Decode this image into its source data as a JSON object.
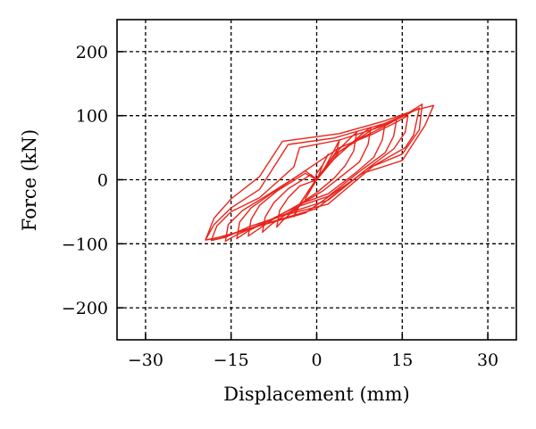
{
  "chart_data": {
    "type": "line",
    "title": "",
    "xlabel": "Displacement (mm)",
    "ylabel": "Force (kN)",
    "xlim": [
      -35,
      35
    ],
    "ylim": [
      -250,
      250
    ],
    "x_ticks": [
      -30,
      -15,
      0,
      15,
      30
    ],
    "y_ticks": [
      -200,
      -100,
      0,
      100,
      200
    ],
    "x_tick_labels": [
      "−30",
      "−15",
      "0",
      "15",
      "30"
    ],
    "y_tick_labels": [
      "−200",
      "−100",
      "0",
      "100",
      "200"
    ],
    "grid": true,
    "grid_style": "dashed",
    "legend": "none",
    "line_color": "#e8241c",
    "series": [
      {
        "x": [
          0,
          0.5,
          1,
          2,
          1.2,
          0,
          -0.5,
          -1,
          -2,
          -1,
          0
        ],
        "y": [
          0,
          10,
          22,
          40,
          25,
          10,
          -5,
          -15,
          -30,
          -15,
          0
        ]
      },
      {
        "x": [
          0,
          1.5,
          3,
          4,
          3.5,
          2,
          0.5,
          -1.5,
          -3,
          -4,
          -3.5,
          -2,
          -0.5,
          0
        ],
        "y": [
          0,
          20,
          45,
          62,
          45,
          25,
          8,
          -18,
          -40,
          -58,
          -45,
          -25,
          -8,
          0
        ]
      },
      {
        "x": [
          0,
          2,
          4,
          6,
          7,
          6.5,
          5,
          3,
          0,
          -2,
          -4,
          -6,
          -7,
          -6.5,
          -5,
          -3,
          0
        ],
        "y": [
          0,
          25,
          48,
          66,
          74,
          45,
          22,
          2,
          -20,
          -32,
          -48,
          -64,
          -74,
          -48,
          -28,
          -10,
          0
        ]
      },
      {
        "x": [
          0,
          3,
          6,
          8,
          9.5,
          9,
          7.5,
          5,
          1,
          -2,
          -5,
          -8,
          -9.5,
          -9,
          -7.5,
          -5,
          -1,
          0
        ],
        "y": [
          0,
          32,
          56,
          72,
          82,
          55,
          28,
          10,
          -18,
          -34,
          -52,
          -70,
          -82,
          -58,
          -36,
          -14,
          8,
          0
        ]
      },
      {
        "x": [
          0,
          3,
          7,
          10,
          12,
          11.5,
          10,
          7,
          2,
          -3,
          -7,
          -10,
          -12,
          -11.5,
          -10,
          -7,
          -2,
          0
        ],
        "y": [
          0,
          38,
          62,
          80,
          88,
          62,
          35,
          12,
          -22,
          -38,
          -58,
          -76,
          -88,
          -62,
          -40,
          -18,
          10,
          0
        ]
      },
      {
        "x": [
          0,
          4,
          8,
          12,
          14,
          13.5,
          12,
          8,
          2,
          -4,
          -8,
          -12,
          -14,
          -13.5,
          -11.5,
          -8,
          -2,
          0
        ],
        "y": [
          0,
          44,
          66,
          84,
          94,
          68,
          42,
          16,
          -26,
          -44,
          -62,
          -80,
          -92,
          -66,
          -44,
          -22,
          14,
          0
        ]
      },
      {
        "x": [
          -1,
          4,
          10,
          14,
          16,
          15.5,
          13.5,
          9,
          2,
          -5,
          -10,
          -14,
          -16,
          -15.5,
          -13,
          -9,
          -3,
          -1
        ],
        "y": [
          20,
          50,
          72,
          90,
          100,
          74,
          48,
          18,
          -32,
          -52,
          -70,
          -86,
          -96,
          -70,
          -48,
          -26,
          8,
          20
        ]
      },
      {
        "x": [
          -3,
          4,
          11,
          15,
          18,
          17,
          15.5,
          10,
          2,
          -6,
          -12,
          -16,
          -18.5,
          -17.5,
          -15,
          -10,
          -4,
          -3
        ],
        "y": [
          50,
          62,
          82,
          98,
          112,
          70,
          50,
          22,
          -38,
          -56,
          -74,
          -90,
          -95,
          -72,
          -50,
          -28,
          20,
          50
        ]
      },
      {
        "x": [
          -5,
          3,
          12,
          16,
          18.5,
          18,
          15,
          9,
          0,
          -8,
          -14,
          -18,
          -19.5,
          -18,
          -15,
          -10,
          -5
        ],
        "y": [
          55,
          65,
          88,
          104,
          118,
          78,
          40,
          18,
          -45,
          -66,
          -82,
          -92,
          -94,
          -70,
          -44,
          -15,
          55
        ]
      },
      {
        "x": [
          -6,
          4,
          12,
          17,
          20.5,
          19,
          15,
          8,
          -2,
          -10,
          -16,
          -19.5,
          -18,
          -15,
          -10,
          -6
        ],
        "y": [
          60,
          72,
          92,
          108,
          116,
          85,
          30,
          10,
          -52,
          -72,
          -88,
          -94,
          -60,
          -30,
          5,
          60
        ]
      }
    ]
  }
}
